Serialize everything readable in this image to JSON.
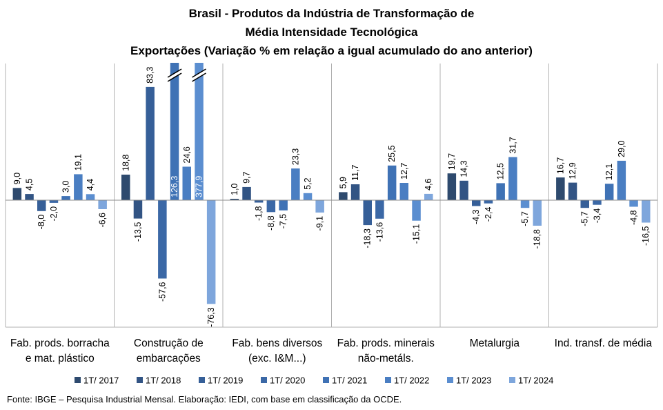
{
  "title_lines": [
    "Brasil - Produtos da Indústria de Transformação de",
    "Média Intensidade Tecnológica",
    "Exportações (Variação % em relação a igual acumulado do ano anterior)"
  ],
  "source": "Fonte: IBGE – Pesquisa Industrial Mensal. Elaboração: IEDI, com base em classificação da OCDE.",
  "chart_data": {
    "type": "bar",
    "categories": [
      [
        "Fab. prods. borracha",
        "e mat. plástico"
      ],
      [
        "Construção de",
        "embarcações"
      ],
      [
        "Fab. bens diversos",
        "(exc. I&M...)"
      ],
      [
        "Fab. prods. minerais",
        "não-metáls."
      ],
      [
        "Metalurgia"
      ],
      [
        "Ind. transf. de média"
      ]
    ],
    "series": [
      {
        "name": "1T/ 2017",
        "color": "#2e4a6e",
        "values": [
          9.0,
          18.8,
          1.0,
          5.9,
          19.7,
          16.7
        ]
      },
      {
        "name": "1T/ 2018",
        "color": "#325484",
        "values": [
          4.5,
          -13.5,
          9.7,
          11.7,
          14.3,
          12.9
        ]
      },
      {
        "name": "1T/ 2019",
        "color": "#365f98",
        "values": [
          -8.0,
          83.3,
          -1.8,
          -18.3,
          -4.3,
          -5.7
        ]
      },
      {
        "name": "1T/ 2020",
        "color": "#3b68a6",
        "values": [
          -2.0,
          -57.6,
          -8.8,
          -13.6,
          -2.4,
          -3.4
        ]
      },
      {
        "name": "1T/ 2021",
        "color": "#3f72b5",
        "values": [
          3.0,
          126.3,
          -7.5,
          25.5,
          12.5,
          12.1
        ]
      },
      {
        "name": "1T/ 2022",
        "color": "#4a7ec2",
        "values": [
          19.1,
          24.6,
          23.3,
          12.7,
          31.7,
          29.0
        ]
      },
      {
        "name": "1T/ 2023",
        "color": "#5b8ed0",
        "values": [
          4.4,
          377.9,
          5.2,
          -15.1,
          -5.7,
          -4.8
        ]
      },
      {
        "name": "1T/ 2024",
        "color": "#7ea6dc",
        "values": [
          -6.6,
          -76.3,
          -9.1,
          4.6,
          -18.8,
          -16.5
        ]
      }
    ],
    "labels": [
      [
        "9,0",
        "4,5",
        "-8,0",
        "-2,0",
        "3,0",
        "19,1",
        "4,4",
        "-6,6"
      ],
      [
        "18,8",
        "-13,5",
        "83,3",
        "-57,6",
        "126,3",
        "24,6",
        "377,9",
        "-76,3"
      ],
      [
        "1,0",
        "9,7",
        "-1,8",
        "-8,8",
        "-7,5",
        "23,3",
        "5,2",
        "-9,1"
      ],
      [
        "5,9",
        "11,7",
        "-18,3",
        "-13,6",
        "25,5",
        "12,7",
        "-15,1",
        "4,6"
      ],
      [
        "19,7",
        "14,3",
        "-4,3",
        "-2,4",
        "12,5",
        "31,7",
        "-5,7",
        "-18,8"
      ],
      [
        "16,7",
        "12,9",
        "-5,7",
        "-3,4",
        "12,1",
        "29,0",
        "-4,8",
        "-16,5"
      ]
    ],
    "ylim": [
      -93,
      101
    ],
    "axis_break": true,
    "gridlines": false,
    "legend_position": "bottom"
  }
}
